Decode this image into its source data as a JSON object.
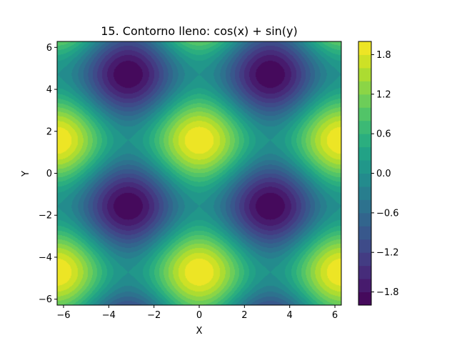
{
  "chart_data": {
    "type": "heatmap",
    "subtype": "filled-contour",
    "title": "15. Contorno lleno: cos(x) + sin(y)",
    "xlabel": "X",
    "ylabel": "Y",
    "function": "cos(x) + sin(y)",
    "xlim": [
      -6.2832,
      6.2832
    ],
    "ylim": [
      -6.2832,
      6.2832
    ],
    "x_ticks": [
      -6,
      -4,
      -2,
      0,
      2,
      4,
      6
    ],
    "y_ticks": [
      -6,
      -4,
      -2,
      0,
      2,
      4,
      6
    ],
    "x_tick_labels": [
      "−6",
      "−4",
      "−2",
      "0",
      "2",
      "4",
      "6"
    ],
    "y_tick_labels": [
      "−6",
      "−4",
      "−2",
      "0",
      "2",
      "4",
      "6"
    ],
    "grid": false,
    "colormap": "viridis",
    "colorbar": {
      "position": "right",
      "range": [
        -2.0,
        2.0
      ],
      "levels": 20,
      "ticks": [
        -1.8,
        -1.2,
        -0.6,
        0.0,
        0.6,
        1.2,
        1.8
      ],
      "tick_labels": [
        "−1.8",
        "−1.2",
        "−0.6",
        "0.0",
        "0.6",
        "1.2",
        "1.8"
      ]
    },
    "extrema": {
      "maxima": [
        [
          0,
          1.5708
        ],
        [
          -6.2832,
          1.5708
        ],
        [
          6.2832,
          1.5708
        ],
        [
          0,
          -4.7124
        ],
        [
          -6.2832,
          -4.7124
        ],
        [
          6.2832,
          -4.7124
        ]
      ],
      "minima": [
        [
          -3.1416,
          4.7124
        ],
        [
          3.1416,
          4.7124
        ],
        [
          -3.1416,
          -1.5708
        ],
        [
          3.1416,
          -1.5708
        ]
      ],
      "max_value": 2.0,
      "min_value": -2.0
    }
  }
}
